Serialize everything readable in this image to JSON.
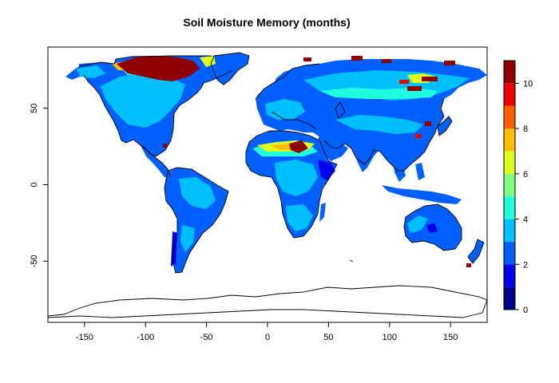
{
  "title": "Soil Moisture Memory (months)",
  "map": {
    "lon_range": [
      -180,
      180
    ],
    "lat_range": [
      -90,
      90
    ],
    "x_ticks": [
      {
        "value": -150,
        "label": "-150"
      },
      {
        "value": -100,
        "label": "-100"
      },
      {
        "value": -50,
        "label": "-50"
      },
      {
        "value": 0,
        "label": "0"
      },
      {
        "value": 50,
        "label": "50"
      },
      {
        "value": 100,
        "label": "100"
      },
      {
        "value": 150,
        "label": "150"
      }
    ],
    "y_ticks": [
      {
        "value": -50,
        "label": "-50"
      },
      {
        "value": 0,
        "label": "0"
      },
      {
        "value": 50,
        "label": "50"
      }
    ]
  },
  "colorbar": {
    "range": [
      0,
      11
    ],
    "labels": [
      {
        "value": 0,
        "label": "0"
      },
      {
        "value": 2,
        "label": "2"
      },
      {
        "value": 4,
        "label": "4"
      },
      {
        "value": 6,
        "label": "6"
      },
      {
        "value": 8,
        "label": "8"
      },
      {
        "value": 10,
        "label": "10"
      }
    ],
    "colors": [
      "#00008f",
      "#0000ef",
      "#005fff",
      "#00bfff",
      "#1fffdf",
      "#7fff7f",
      "#dfff1f",
      "#ffbf00",
      "#ff5f00",
      "#ef0000",
      "#8f0000"
    ]
  }
}
